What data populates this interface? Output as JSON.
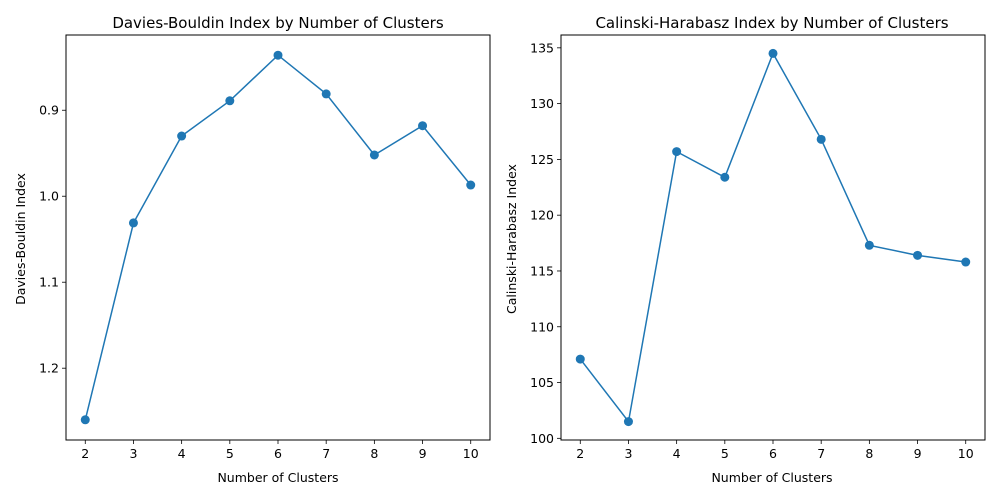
{
  "chart_data": [
    {
      "type": "line",
      "title": "Davies-Bouldin Index by Number of Clusters",
      "xlabel": "Number of Clusters",
      "ylabel": "Davies-Bouldin Index",
      "x": [
        2,
        3,
        4,
        5,
        6,
        7,
        8,
        9,
        10
      ],
      "series": [
        {
          "values": [
            1.26,
            1.031,
            0.93,
            0.889,
            0.836,
            0.881,
            0.952,
            0.918,
            0.987
          ]
        }
      ],
      "xlim": [
        1.6,
        10.4
      ],
      "ylim": [
        1.2835,
        0.8125
      ],
      "y_inverted": true,
      "xticks": [
        2,
        3,
        4,
        5,
        6,
        7,
        8,
        9,
        10
      ],
      "yticks": [
        0.9,
        1.0,
        1.1,
        1.2
      ],
      "ytick_labels": [
        "0.9",
        "1.0",
        "1.1",
        "1.2"
      ],
      "grid": false,
      "color": "#1f77b4",
      "marker": "circle"
    },
    {
      "type": "line",
      "title": "Calinski-Harabasz Index by Number of Clusters",
      "xlabel": "Number of Clusters",
      "ylabel": "Calinski-Harabasz Index",
      "x": [
        2,
        3,
        4,
        5,
        6,
        7,
        8,
        9,
        10
      ],
      "series": [
        {
          "values": [
            107.1,
            101.5,
            125.7,
            123.4,
            134.5,
            126.8,
            117.3,
            116.4,
            115.8
          ]
        }
      ],
      "xlim": [
        1.6,
        10.4
      ],
      "ylim": [
        99.85,
        136.15
      ],
      "y_inverted": false,
      "xticks": [
        2,
        3,
        4,
        5,
        6,
        7,
        8,
        9,
        10
      ],
      "yticks": [
        100,
        105,
        110,
        115,
        120,
        125,
        130,
        135
      ],
      "ytick_labels": [
        "100",
        "105",
        "110",
        "115",
        "120",
        "125",
        "130",
        "135"
      ],
      "grid": false,
      "color": "#1f77b4",
      "marker": "circle"
    }
  ]
}
